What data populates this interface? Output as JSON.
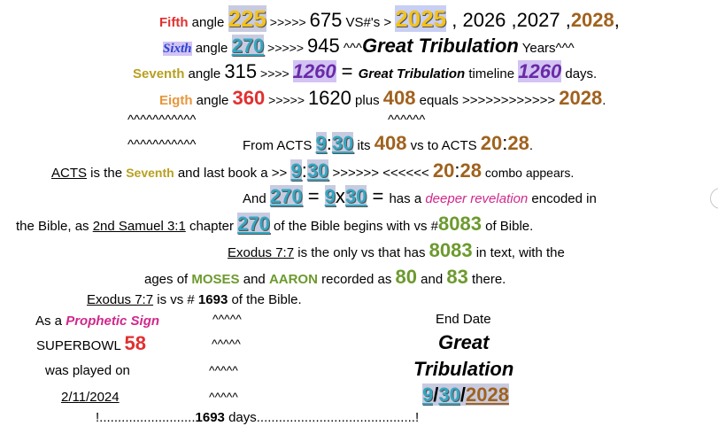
{
  "line1": {
    "a": "Fifth",
    "b": " angle ",
    "c": "225",
    "d": " >>>>> ",
    "e": "675",
    "f": "  VS#'s > ",
    "g": "2025",
    "h": " , 2026 ,2027 ,",
    "i": "2028",
    ",": ","
  },
  "line2": {
    "a": "Sixth",
    "b": " angle ",
    "c": "270",
    "d": " >>>>> ",
    "e": "945",
    "f": "     ^^^",
    "g": "Great Tribulation",
    "h": " Years^^^"
  },
  "line3": {
    "a": "Seventh",
    "b": " angle ",
    "c": "315",
    "d": " >>>> ",
    "e": "1260",
    "f": " = ",
    "g": "Great Tribulation",
    "h": " timeline ",
    "i": "1260",
    "j": " days."
  },
  "line4": {
    "a": "Eigth",
    "b": " angle ",
    "c": "360",
    "d": " >>>>> ",
    "e": "1620",
    "f": " plus ",
    "g": "408",
    "h": " equals >>>>>>>>>>>> ",
    "i": "2028",
    "j": "."
  },
  "line5": {
    "a": "^^^^^^^^^^^",
    "b": "^^^^^^"
  },
  "line6": {
    "a": "^^^^^^^^^^^",
    "b": "From ACTS ",
    "c": "9",
    ":": ":",
    "d": "30",
    "e": " its ",
    "f": "408",
    "g": " vs to ACTS ",
    "h": "20",
    "i": ":",
    "j": "28",
    "k": "."
  },
  "line7": {
    "a": "ACTS",
    "b": " is the ",
    "c": "Seventh",
    "d": " and last book a >> ",
    "e": "9",
    "f": ":",
    "g": "30",
    "h": " >>>>>> <<<<<< ",
    "i": "20",
    "j": ":",
    "k": "28",
    "l": " combo appears."
  },
  "line8": {
    "a": "And ",
    "b": "270",
    "c": " = ",
    "d": "9",
    "e": "x",
    "f": "30",
    "g": " = ",
    "h": "has a ",
    "i": "deeper revelation",
    "j": " encoded in"
  },
  "line9": {
    "a": "the Bible, as ",
    "b": "2nd Samuel 3:1",
    "c": " chapter ",
    "d": "270",
    "e": " of the Bible begins with vs #",
    "f": "8083",
    "g": " of Bible."
  },
  "line10": {
    "a": "Exodus 7:7",
    "b": " is the only  vs  that has ",
    "c": "8083",
    "d": " in text, with the"
  },
  "line11": {
    "a": "ages of ",
    "b": "MOSES",
    "c": " and ",
    "d": "AARON",
    "e": " recorded as ",
    "f": "80",
    "g": " and ",
    "h": "83",
    "i": " there."
  },
  "line12": {
    "a": "Exodus 7:7",
    "b": " is vs # ",
    "c": "1693",
    "d": " of the Bible."
  },
  "left": {
    "l1a": "As a ",
    "l1b": "Prophetic Sign",
    "l2a": "SUPERBOWL ",
    "l2b": "58",
    "l3": "was played on",
    "l4": "2/11/2024"
  },
  "carets": {
    "c1": "^^^^^",
    "c2": "^^^^^",
    "c3": "^^^^^",
    "c4": "^^^^^"
  },
  "right": {
    "r1": "End  Date",
    "r2": "Great",
    "r3": "Tribulation",
    "r4a": "9",
    "r4b": "/",
    "r4c": "30",
    "r4d": "/",
    "r4e": "2028"
  },
  "bottom": {
    "a": "!..........................",
    "b": "1693",
    "c": " days...........................................!"
  }
}
